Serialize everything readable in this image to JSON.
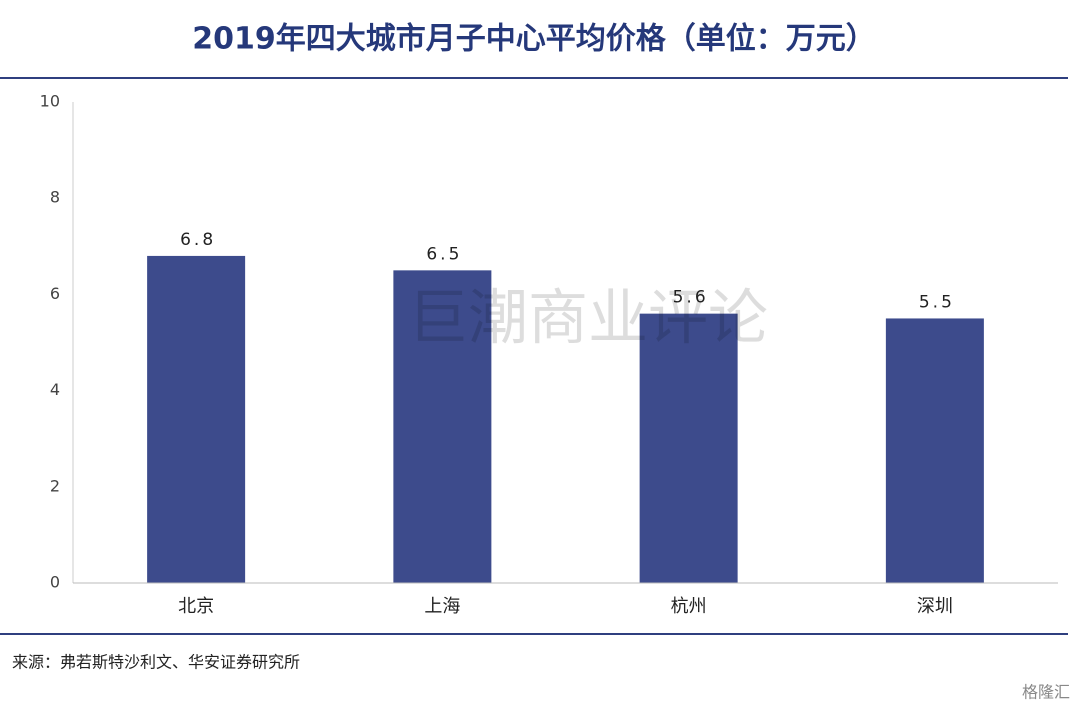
{
  "chart_data": {
    "type": "bar",
    "title": "2019年四大城市月子中心平均价格（单位：万元）",
    "categories": [
      "北京",
      "上海",
      "杭州",
      "深圳"
    ],
    "values": [
      6.8,
      6.5,
      5.6,
      5.5
    ],
    "color": "#3d4b8c",
    "ylim": [
      0,
      10
    ],
    "yticks": [
      0,
      2,
      4,
      6,
      8,
      10
    ],
    "grid": false,
    "source": "来源：弗若斯特沙利文、华安证券研究所",
    "watermark": "巨潮商业评论",
    "logo": "格隆汇"
  }
}
